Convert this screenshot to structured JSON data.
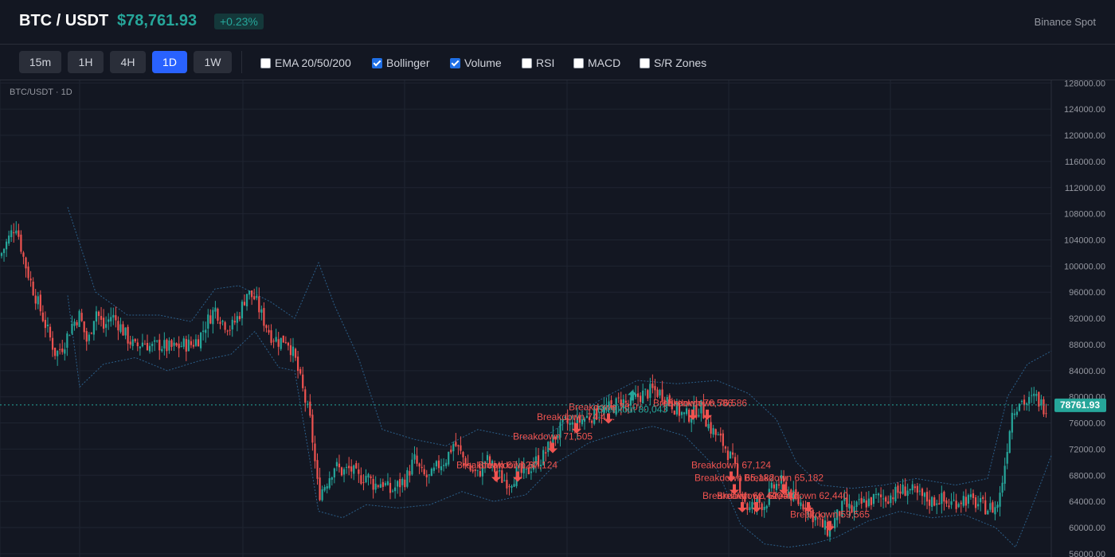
{
  "header": {
    "symbol": "BTC / USDT",
    "price": "$78,761.93",
    "change": "+0.23%",
    "exchange": "Binance Spot"
  },
  "toolbar": {
    "timeframes": [
      {
        "label": "15m",
        "active": false
      },
      {
        "label": "1H",
        "active": false
      },
      {
        "label": "4H",
        "active": false
      },
      {
        "label": "1D",
        "active": true
      },
      {
        "label": "1W",
        "active": false
      }
    ],
    "indicators": [
      {
        "label": "EMA 20/50/200",
        "checked": false
      },
      {
        "label": "Bollinger",
        "checked": true
      },
      {
        "label": "Volume",
        "checked": true
      },
      {
        "label": "RSI",
        "checked": false
      },
      {
        "label": "MACD",
        "checked": false
      },
      {
        "label": "S/R Zones",
        "checked": false
      }
    ]
  },
  "chart": {
    "pane_label": "BTC/USDT · 1D",
    "price_tag": "78761.93",
    "colors": {
      "bg": "#131722",
      "grid": "#1f2431",
      "up": "#26a69a",
      "down": "#ef5350",
      "band": "#2b5f8a",
      "axis_text": "#9598a1",
      "accent": "#2962ff"
    }
  },
  "chart_data": {
    "type": "candlestick",
    "symbol": "BTC/USDT",
    "interval": "1D",
    "last_price": 78761.93,
    "y_ticks": [
      56000,
      60000,
      64000,
      68000,
      72000,
      76000,
      80000,
      84000,
      88000,
      92000,
      96000,
      100000,
      104000,
      108000,
      112000,
      116000,
      120000,
      124000,
      128000
    ],
    "ylim": [
      55500,
      128400
    ],
    "grid": true,
    "close_path": [
      [
        0,
        101500
      ],
      [
        10,
        104000
      ],
      [
        20,
        106500
      ],
      [
        30,
        101000
      ],
      [
        40,
        97000
      ],
      [
        50,
        93500
      ],
      [
        60,
        90000
      ],
      [
        70,
        86500
      ],
      [
        80,
        88000
      ],
      [
        90,
        91000
      ],
      [
        100,
        92500
      ],
      [
        110,
        88000
      ],
      [
        120,
        93500
      ],
      [
        130,
        90500
      ],
      [
        140,
        92500
      ],
      [
        150,
        91000
      ],
      [
        160,
        89000
      ],
      [
        170,
        87500
      ],
      [
        180,
        88500
      ],
      [
        190,
        87500
      ],
      [
        200,
        88000
      ],
      [
        210,
        87500
      ],
      [
        220,
        87500
      ],
      [
        230,
        88000
      ],
      [
        240,
        88000
      ],
      [
        250,
        89000
      ],
      [
        260,
        91500
      ],
      [
        270,
        93500
      ],
      [
        280,
        91500
      ],
      [
        290,
        90500
      ],
      [
        300,
        92500
      ],
      [
        310,
        96000
      ],
      [
        320,
        95000
      ],
      [
        330,
        92000
      ],
      [
        340,
        89500
      ],
      [
        350,
        88500
      ],
      [
        360,
        89000
      ],
      [
        370,
        86000
      ],
      [
        380,
        81000
      ],
      [
        390,
        76000
      ],
      [
        400,
        65000
      ],
      [
        410,
        67000
      ],
      [
        420,
        69500
      ],
      [
        430,
        68500
      ],
      [
        440,
        69000
      ],
      [
        450,
        67500
      ],
      [
        460,
        68000
      ],
      [
        470,
        66500
      ],
      [
        480,
        67000
      ],
      [
        490,
        65500
      ],
      [
        500,
        66500
      ],
      [
        510,
        67500
      ],
      [
        520,
        70500
      ],
      [
        530,
        68000
      ],
      [
        540,
        67500
      ],
      [
        550,
        69500
      ],
      [
        560,
        70500
      ],
      [
        570,
        73000
      ],
      [
        580,
        71000
      ],
      [
        590,
        69000
      ],
      [
        600,
        68000
      ],
      [
        610,
        70500
      ],
      [
        620,
        69000
      ],
      [
        630,
        67500
      ],
      [
        640,
        67000
      ],
      [
        650,
        68500
      ],
      [
        660,
        68000
      ],
      [
        670,
        70000
      ],
      [
        680,
        70500
      ],
      [
        690,
        72500
      ],
      [
        700,
        74500
      ],
      [
        710,
        76000
      ],
      [
        720,
        75500
      ],
      [
        730,
        76500
      ],
      [
        740,
        77000
      ],
      [
        750,
        77500
      ],
      [
        760,
        78000
      ],
      [
        770,
        78500
      ],
      [
        780,
        79500
      ],
      [
        790,
        78500
      ],
      [
        800,
        80000
      ],
      [
        810,
        80500
      ],
      [
        820,
        81000
      ],
      [
        830,
        80500
      ],
      [
        840,
        79500
      ],
      [
        850,
        78000
      ],
      [
        860,
        77000
      ],
      [
        870,
        77500
      ],
      [
        880,
        78500
      ],
      [
        890,
        75500
      ],
      [
        900,
        74000
      ],
      [
        910,
        72500
      ],
      [
        920,
        70000
      ],
      [
        930,
        66000
      ],
      [
        940,
        62500
      ],
      [
        950,
        64000
      ],
      [
        960,
        63500
      ],
      [
        970,
        66000
      ],
      [
        980,
        67000
      ],
      [
        990,
        65500
      ],
      [
        1000,
        64000
      ],
      [
        1010,
        63500
      ],
      [
        1020,
        62000
      ],
      [
        1030,
        60500
      ],
      [
        1040,
        59500
      ],
      [
        1050,
        61500
      ],
      [
        1060,
        63500
      ],
      [
        1070,
        62500
      ],
      [
        1080,
        63500
      ],
      [
        1090,
        64000
      ],
      [
        1100,
        64500
      ],
      [
        1110,
        64500
      ],
      [
        1120,
        65000
      ],
      [
        1130,
        65500
      ],
      [
        1140,
        66000
      ],
      [
        1150,
        65000
      ],
      [
        1160,
        64500
      ],
      [
        1170,
        64000
      ],
      [
        1180,
        64500
      ],
      [
        1190,
        63500
      ],
      [
        1200,
        64000
      ],
      [
        1210,
        64500
      ],
      [
        1220,
        64000
      ],
      [
        1230,
        63500
      ],
      [
        1240,
        63000
      ],
      [
        1250,
        63000
      ],
      [
        1255,
        64500
      ],
      [
        1262,
        70000
      ],
      [
        1270,
        77500
      ],
      [
        1280,
        79500
      ],
      [
        1290,
        79000
      ],
      [
        1300,
        80000
      ],
      [
        1310,
        78500
      ],
      [
        1320,
        78761.93
      ]
    ],
    "bollinger": {
      "upper": [
        [
          85,
          109000
        ],
        [
          120,
          96000
        ],
        [
          160,
          92500
        ],
        [
          200,
          92500
        ],
        [
          240,
          91500
        ],
        [
          270,
          96500
        ],
        [
          300,
          97000
        ],
        [
          340,
          94500
        ],
        [
          370,
          92000
        ],
        [
          400,
          100500
        ],
        [
          420,
          94000
        ],
        [
          450,
          86000
        ],
        [
          480,
          75000
        ],
        [
          520,
          73500
        ],
        [
          560,
          72500
        ],
        [
          600,
          75000
        ],
        [
          640,
          74000
        ],
        [
          680,
          73500
        ],
        [
          720,
          77000
        ],
        [
          760,
          80000
        ],
        [
          800,
          82500
        ],
        [
          850,
          82000
        ],
        [
          900,
          82500
        ],
        [
          940,
          80500
        ],
        [
          975,
          76500
        ],
        [
          1000,
          70000
        ],
        [
          1030,
          66500
        ],
        [
          1070,
          66000
        ],
        [
          1110,
          66500
        ],
        [
          1150,
          67500
        ],
        [
          1200,
          66500
        ],
        [
          1240,
          67500
        ],
        [
          1265,
          80000
        ],
        [
          1290,
          85000
        ],
        [
          1320,
          87000
        ]
      ],
      "lower": [
        [
          85,
          95500
        ],
        [
          100,
          81500
        ],
        [
          130,
          85000
        ],
        [
          170,
          86000
        ],
        [
          210,
          84000
        ],
        [
          250,
          85500
        ],
        [
          290,
          86500
        ],
        [
          320,
          90000
        ],
        [
          350,
          84500
        ],
        [
          370,
          84000
        ],
        [
          400,
          62500
        ],
        [
          430,
          61500
        ],
        [
          460,
          63500
        ],
        [
          500,
          63000
        ],
        [
          540,
          63500
        ],
        [
          580,
          65500
        ],
        [
          620,
          64000
        ],
        [
          660,
          65000
        ],
        [
          700,
          70000
        ],
        [
          740,
          73000
        ],
        [
          780,
          74500
        ],
        [
          820,
          75500
        ],
        [
          860,
          74000
        ],
        [
          900,
          69000
        ],
        [
          930,
          60500
        ],
        [
          960,
          57500
        ],
        [
          990,
          57000
        ],
        [
          1020,
          57500
        ],
        [
          1050,
          58500
        ],
        [
          1090,
          61000
        ],
        [
          1130,
          62500
        ],
        [
          1170,
          61500
        ],
        [
          1210,
          62000
        ],
        [
          1250,
          60000
        ],
        [
          1275,
          57000
        ],
        [
          1295,
          63000
        ],
        [
          1320,
          71000
        ]
      ]
    },
    "annotations": [
      {
        "text": "Breakdown 76,0…",
        "x": 764,
        "price": 76000,
        "type": "breakdown"
      },
      {
        "text": "Breakdown 74,4…",
        "x": 724,
        "price": 74500,
        "type": "breakdown"
      },
      {
        "text": "Breakdown 71,505",
        "x": 694,
        "price": 71505,
        "type": "breakdown"
      },
      {
        "text": "Breakdown 67,124",
        "x": 623,
        "price": 67124,
        "type": "breakdown"
      },
      {
        "text": "Breakdown 67,124",
        "x": 650,
        "price": 67124,
        "type": "breakdown"
      },
      {
        "text": "Breakout 80,043",
        "x": 794,
        "price": 80043,
        "type": "breakout"
      },
      {
        "text": "Breakdown 76,586",
        "x": 870,
        "price": 76586,
        "type": "breakdown"
      },
      {
        "text": "Breakdown 76,586",
        "x": 888,
        "price": 76586,
        "type": "breakdown"
      },
      {
        "text": "Breakdown 67,124",
        "x": 918,
        "price": 67124,
        "type": "breakdown"
      },
      {
        "text": "Breakdown 65,182",
        "x": 922,
        "price": 65182,
        "type": "breakdown"
      },
      {
        "text": "Breakdown 65,182",
        "x": 984,
        "price": 65182,
        "type": "breakdown"
      },
      {
        "text": "Breakdown 62,440",
        "x": 932,
        "price": 62440,
        "type": "breakdown"
      },
      {
        "text": "Breakdown 62,440",
        "x": 950,
        "price": 62440,
        "type": "breakdown"
      },
      {
        "text": "Breakdown 62,440",
        "x": 1015,
        "price": 62440,
        "type": "breakdown"
      },
      {
        "text": "Breakdown 59,565",
        "x": 1042,
        "price": 59565,
        "type": "breakdown"
      }
    ]
  }
}
